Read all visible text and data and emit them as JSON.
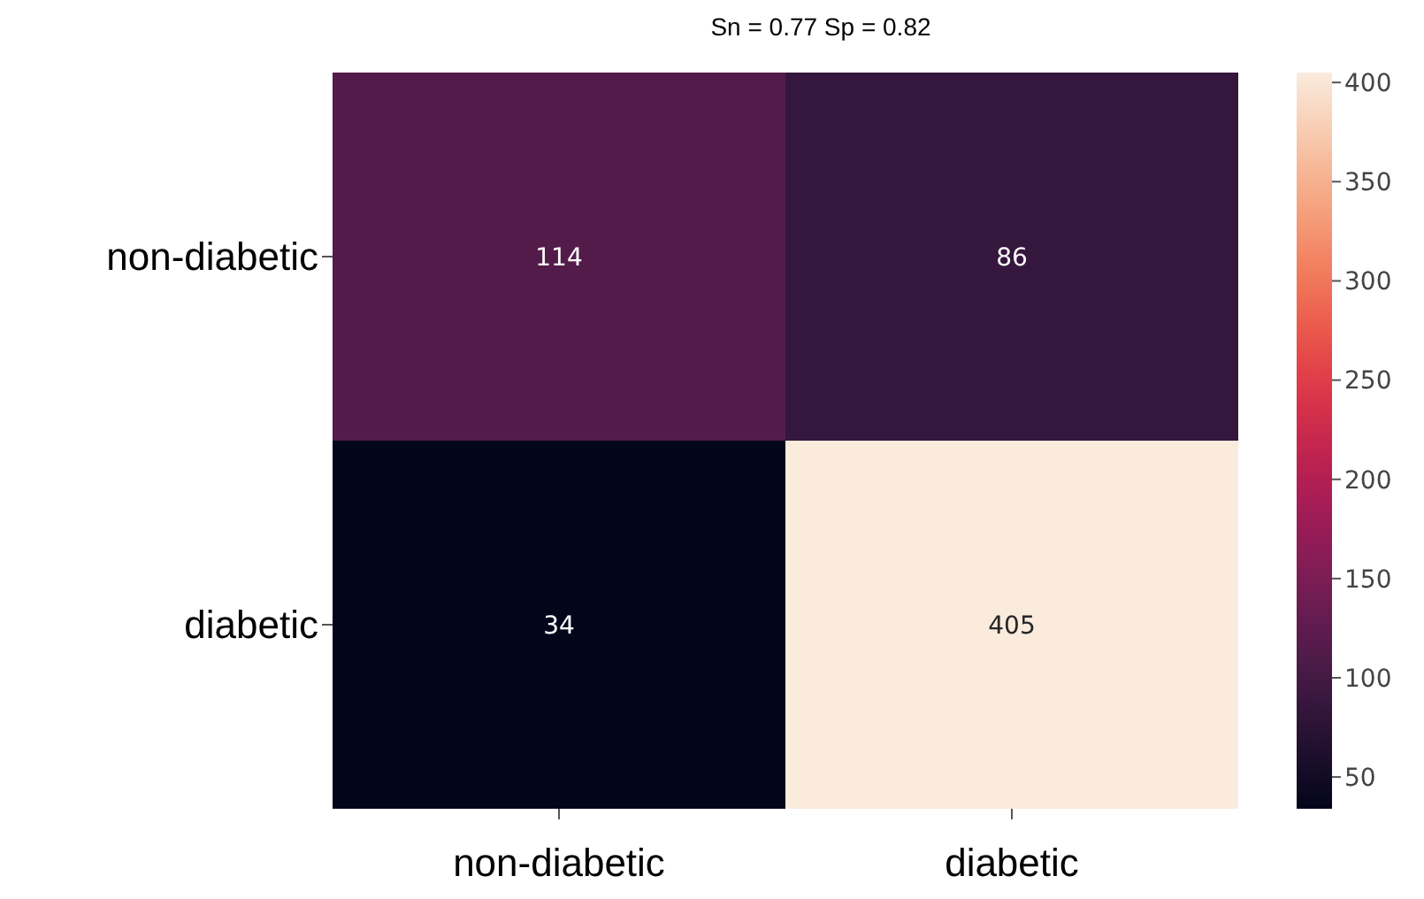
{
  "chart_data": {
    "type": "heatmap",
    "title": "Sn = 0.77  Sp = 0.82",
    "categories": [
      "non-diabetic",
      "diabetic"
    ],
    "y_categories": [
      "non-diabetic",
      "diabetic"
    ],
    "cells": [
      [
        114,
        86
      ],
      [
        34,
        405
      ]
    ],
    "data_labels": true,
    "clim": [
      34,
      405
    ],
    "cticks": [
      50,
      100,
      150,
      200,
      250,
      300,
      350,
      400
    ]
  }
}
